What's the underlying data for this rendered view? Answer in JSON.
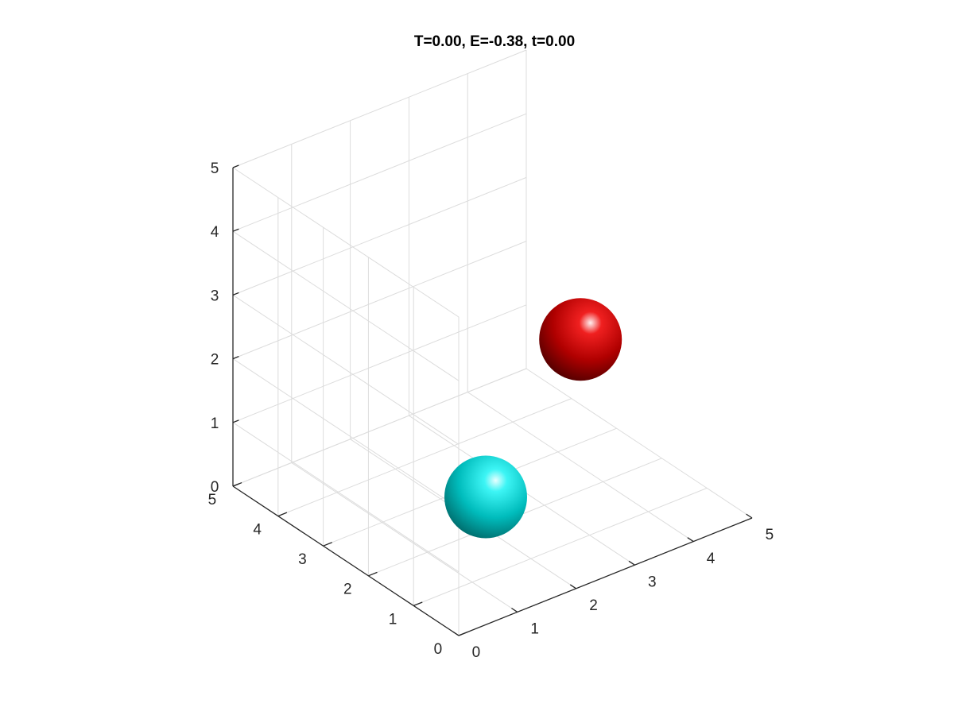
{
  "chart_data": {
    "type": "scatter3d",
    "title": "T=0.00, E=-0.38, t=0.00",
    "xlim": [
      0,
      5
    ],
    "ylim": [
      0,
      5
    ],
    "zlim": [
      0,
      5
    ],
    "x_ticks": [
      "0",
      "1",
      "2",
      "3",
      "4",
      "5"
    ],
    "y_ticks": [
      "0",
      "1",
      "2",
      "3",
      "4",
      "5"
    ],
    "z_ticks": [
      "0",
      "1",
      "2",
      "3",
      "4",
      "5"
    ],
    "grid": true,
    "view": "3d",
    "points": [
      {
        "x": 2.0,
        "y": 2.0,
        "z": 0.5,
        "color": "#00e5e5"
      },
      {
        "x": 4.0,
        "y": 2.5,
        "z": 2.0,
        "color": "#e00000"
      }
    ]
  }
}
